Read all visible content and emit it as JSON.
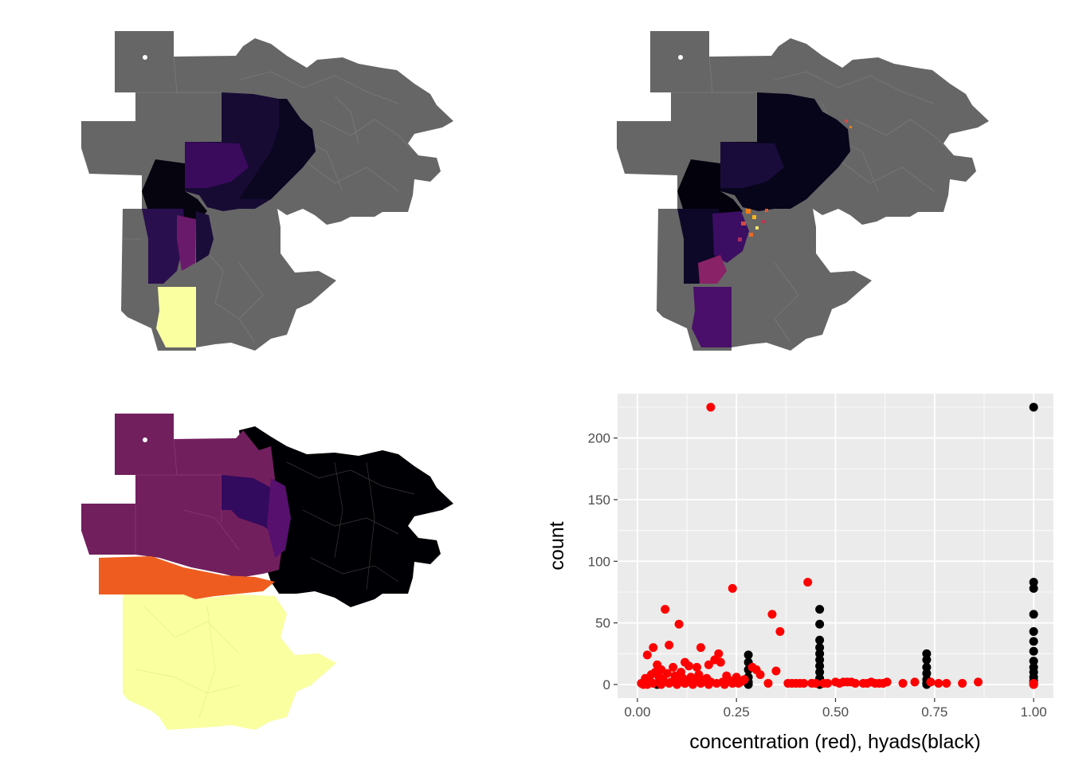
{
  "maps": [
    {
      "id": "map-top-left",
      "fill_scheme": "inferno",
      "missing_color": "#666666"
    },
    {
      "id": "map-top-right",
      "fill_scheme": "inferno",
      "missing_color": "#666666"
    },
    {
      "id": "map-bottom-left",
      "fill_scheme": "inferno",
      "missing_color": "#666666"
    }
  ],
  "chart_data": {
    "type": "scatter",
    "title": "",
    "xlabel": "concentration (red), hyads(black)",
    "ylabel": "count",
    "xlim": [
      -0.05,
      1.05
    ],
    "ylim": [
      -11,
      236
    ],
    "x_ticks": [
      0,
      0.25,
      0.5,
      0.75,
      1
    ],
    "x_tick_labels": [
      "0.00",
      "0.25",
      "0.50",
      "0.75",
      "1.00"
    ],
    "y_ticks": [
      0,
      50,
      100,
      150,
      200
    ],
    "y_tick_labels": [
      "0",
      "50",
      "100",
      "150",
      "200"
    ],
    "grid": true,
    "panel_background": "#ebebeb",
    "legend": "none",
    "series": [
      {
        "color": "#000000",
        "points": [
          [
            0.28,
            24
          ],
          [
            0.28,
            18
          ],
          [
            0.28,
            12
          ],
          [
            0.28,
            6
          ],
          [
            0.28,
            2
          ],
          [
            0.28,
            0
          ],
          [
            0.46,
            61
          ],
          [
            0.46,
            49
          ],
          [
            0.46,
            36
          ],
          [
            0.46,
            30
          ],
          [
            0.46,
            25
          ],
          [
            0.46,
            20
          ],
          [
            0.46,
            15
          ],
          [
            0.46,
            10
          ],
          [
            0.46,
            5
          ],
          [
            0.46,
            1
          ],
          [
            0.46,
            0
          ],
          [
            0.73,
            25
          ],
          [
            0.73,
            20
          ],
          [
            0.73,
            14
          ],
          [
            0.73,
            9
          ],
          [
            0.73,
            4
          ],
          [
            0.73,
            1
          ],
          [
            0.73,
            0
          ],
          [
            1.0,
            225
          ],
          [
            1.0,
            83
          ],
          [
            1.0,
            78
          ],
          [
            1.0,
            57
          ],
          [
            1.0,
            43
          ],
          [
            1.0,
            35
          ],
          [
            1.0,
            27
          ],
          [
            1.0,
            19
          ],
          [
            1.0,
            14
          ],
          [
            1.0,
            10
          ],
          [
            1.0,
            6
          ],
          [
            1.0,
            3
          ],
          [
            1.0,
            1
          ],
          [
            1.0,
            0
          ],
          [
            0.12,
            1
          ],
          [
            0.22,
            1
          ],
          [
            0.05,
            0
          ]
        ]
      },
      {
        "color": "#ff0000",
        "points": [
          [
            0.185,
            225
          ],
          [
            0.24,
            78
          ],
          [
            0.43,
            83
          ],
          [
            0.07,
            61
          ],
          [
            0.34,
            57
          ],
          [
            0.105,
            49
          ],
          [
            0.36,
            43
          ],
          [
            0.04,
            30
          ],
          [
            0.08,
            32
          ],
          [
            0.025,
            24
          ],
          [
            0.16,
            30
          ],
          [
            0.195,
            20
          ],
          [
            0.205,
            25
          ],
          [
            0.18,
            16
          ],
          [
            0.21,
            18
          ],
          [
            0.05,
            16
          ],
          [
            0.06,
            12
          ],
          [
            0.09,
            14
          ],
          [
            0.11,
            10
          ],
          [
            0.13,
            15
          ],
          [
            0.15,
            14
          ],
          [
            0.12,
            18
          ],
          [
            0.02,
            5
          ],
          [
            0.03,
            3
          ],
          [
            0.035,
            8
          ],
          [
            0.045,
            10
          ],
          [
            0.055,
            6
          ],
          [
            0.065,
            4
          ],
          [
            0.075,
            9
          ],
          [
            0.085,
            2
          ],
          [
            0.095,
            7
          ],
          [
            0.1,
            3
          ],
          [
            0.115,
            5
          ],
          [
            0.125,
            2
          ],
          [
            0.135,
            6
          ],
          [
            0.145,
            4
          ],
          [
            0.155,
            8
          ],
          [
            0.165,
            3
          ],
          [
            0.175,
            5
          ],
          [
            0.185,
            2
          ],
          [
            0.01,
            1
          ],
          [
            0.015,
            0
          ],
          [
            0.025,
            0
          ],
          [
            0.04,
            1
          ],
          [
            0.06,
            0
          ],
          [
            0.08,
            1
          ],
          [
            0.1,
            0
          ],
          [
            0.12,
            1
          ],
          [
            0.14,
            0
          ],
          [
            0.16,
            1
          ],
          [
            0.18,
            0
          ],
          [
            0.2,
            1
          ],
          [
            0.22,
            0
          ],
          [
            0.24,
            1
          ],
          [
            0.26,
            2
          ],
          [
            0.27,
            4
          ],
          [
            0.29,
            14
          ],
          [
            0.3,
            12
          ],
          [
            0.31,
            8
          ],
          [
            0.33,
            1
          ],
          [
            0.25,
            6
          ],
          [
            0.235,
            3
          ],
          [
            0.215,
            2
          ],
          [
            0.225,
            7
          ],
          [
            0.255,
            1
          ],
          [
            0.265,
            3
          ],
          [
            0.35,
            11
          ],
          [
            0.38,
            1
          ],
          [
            0.39,
            1
          ],
          [
            0.4,
            1
          ],
          [
            0.41,
            1
          ],
          [
            0.42,
            1
          ],
          [
            0.44,
            1
          ],
          [
            0.45,
            1
          ],
          [
            0.47,
            1
          ],
          [
            0.48,
            1
          ],
          [
            0.5,
            2
          ],
          [
            0.51,
            1
          ],
          [
            0.52,
            2
          ],
          [
            0.53,
            2
          ],
          [
            0.54,
            2
          ],
          [
            0.55,
            1
          ],
          [
            0.57,
            1
          ],
          [
            0.58,
            1
          ],
          [
            0.59,
            2
          ],
          [
            0.6,
            1
          ],
          [
            0.61,
            1
          ],
          [
            0.62,
            1
          ],
          [
            0.63,
            2
          ],
          [
            0.67,
            1
          ],
          [
            0.7,
            2
          ],
          [
            0.74,
            2
          ],
          [
            0.76,
            1
          ],
          [
            0.78,
            1
          ],
          [
            0.82,
            1
          ],
          [
            0.86,
            2
          ],
          [
            1.0,
            1
          ],
          [
            1.0,
            0
          ]
        ]
      }
    ]
  }
}
